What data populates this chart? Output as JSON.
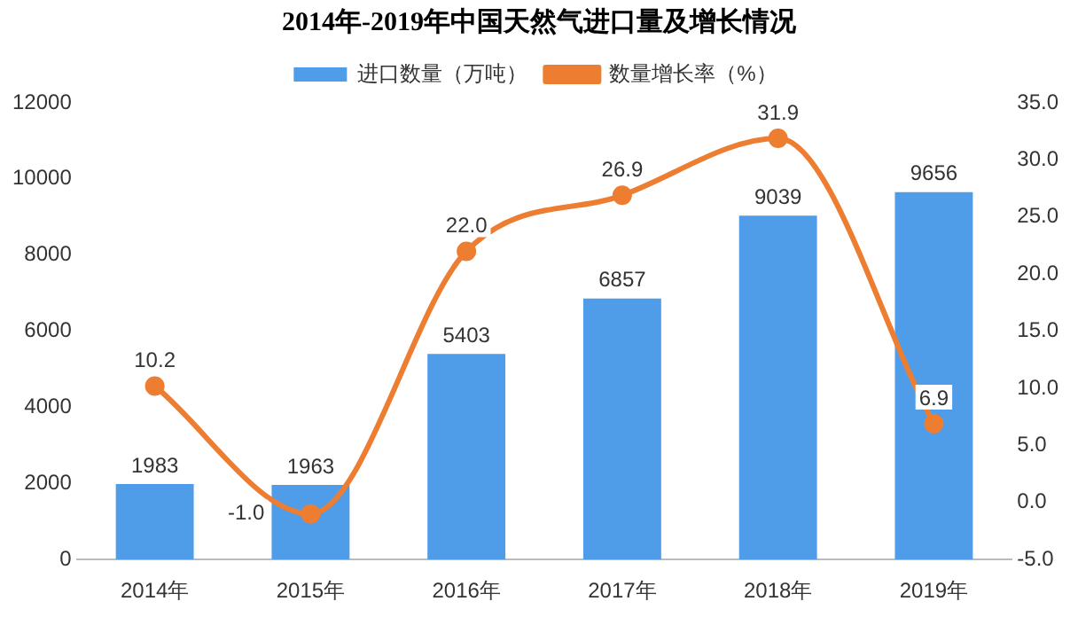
{
  "chart_data": {
    "type": "bar",
    "title": "2014年-2019年中国天然气进口量及增长情况",
    "categories": [
      "2014年",
      "2015年",
      "2016年",
      "2017年",
      "2018年",
      "2019年"
    ],
    "series": [
      {
        "name": "进口数量（万吨）",
        "type": "bar",
        "color": "#4f9de8",
        "values": [
          1983,
          1963,
          5403,
          6857,
          9039,
          9656
        ],
        "value_labels": [
          "1983",
          "1963",
          "5403",
          "6857",
          "9039",
          "9656"
        ]
      },
      {
        "name": "数量增长率（%）",
        "type": "line",
        "axis": "y2",
        "color": "#ed7d31",
        "values": [
          10.2,
          -1.0,
          22.0,
          26.9,
          31.9,
          6.9
        ],
        "value_labels": [
          "10.2",
          "-1.0",
          "22.0",
          "26.9",
          "31.9",
          "6.9"
        ]
      }
    ],
    "ylim": [
      0,
      12000
    ],
    "yticks": [
      0,
      2000,
      4000,
      6000,
      8000,
      10000,
      12000
    ],
    "y2lim": [
      -5,
      35
    ],
    "y2ticks": [
      {
        "value": -5,
        "label": "-5.0"
      },
      {
        "value": 0,
        "label": "0.0"
      },
      {
        "value": 5,
        "label": "5.0"
      },
      {
        "value": 10,
        "label": "10.0"
      },
      {
        "value": 15,
        "label": "15.0"
      },
      {
        "value": 20,
        "label": "20.0"
      },
      {
        "value": 25,
        "label": "25.0"
      },
      {
        "value": 30,
        "label": "30.0"
      },
      {
        "value": 35,
        "label": "35.0"
      }
    ],
    "grid": false,
    "legend": "top",
    "marker": "circle",
    "line_style": "solid"
  }
}
